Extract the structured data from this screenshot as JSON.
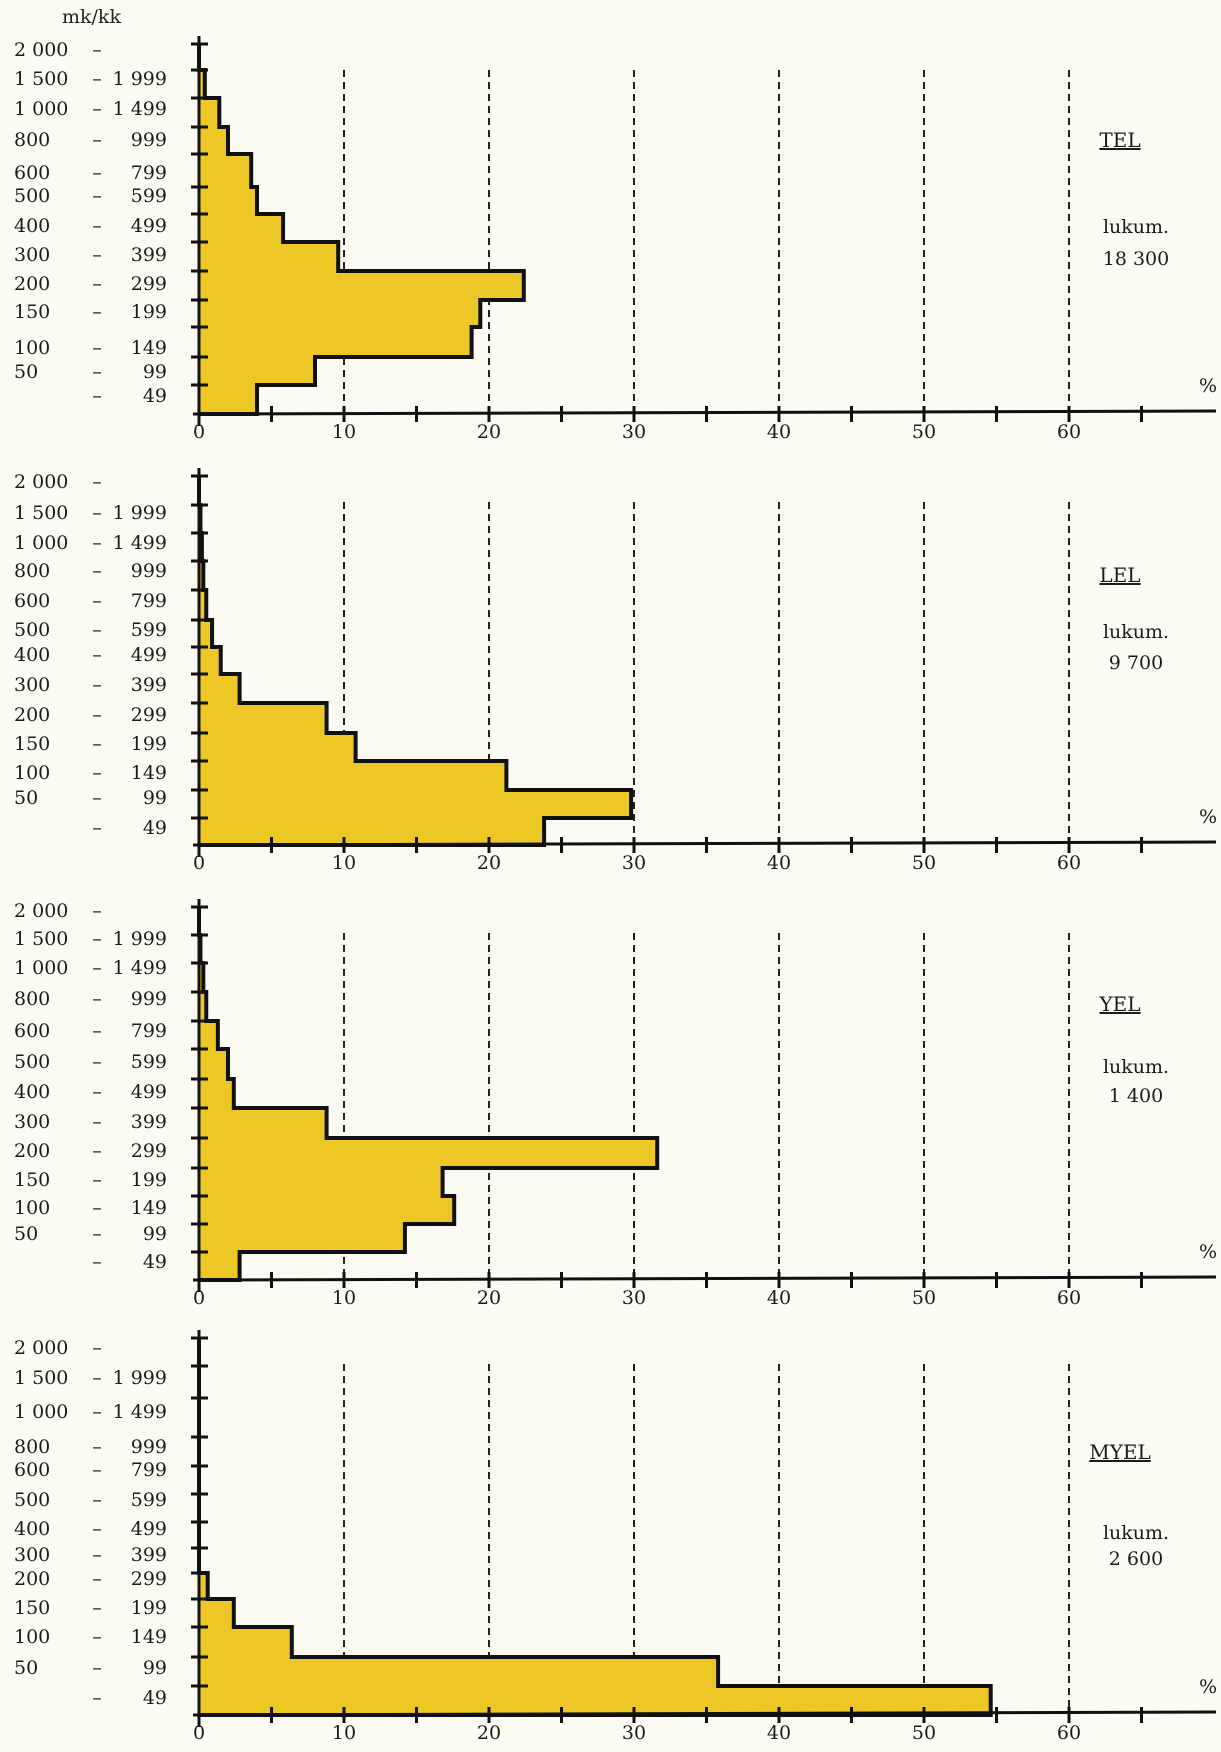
{
  "y_unit": "mk/kk",
  "colors": {
    "fill": "#ecc725",
    "outline": "#111111",
    "grid": "#222222",
    "paper": "#fbfaf3"
  },
  "chart_data": [
    {
      "type": "bar",
      "orientation": "horizontal",
      "style": "step-histogram",
      "title": "TEL",
      "count_label": "lukum.",
      "count_value": "18  300",
      "x_unit": "%",
      "xlim": [
        0,
        70
      ],
      "x_ticks": [
        "0",
        "10",
        "20",
        "30",
        "40",
        "50",
        "60"
      ],
      "grid": "dashed vertical lines at 10, 20, 30, 40, 50, 60",
      "categories": [
        {
          "lo": "",
          "hi": "49"
        },
        {
          "lo": "50",
          "hi": "99"
        },
        {
          "lo": "100",
          "hi": "149"
        },
        {
          "lo": "150",
          "hi": "199"
        },
        {
          "lo": "200",
          "hi": "299"
        },
        {
          "lo": "300",
          "hi": "399"
        },
        {
          "lo": "400",
          "hi": "499"
        },
        {
          "lo": "500",
          "hi": "599"
        },
        {
          "lo": "600",
          "hi": "799"
        },
        {
          "lo": "800",
          "hi": "999"
        },
        {
          "lo": "1  000",
          "hi": "1  499"
        },
        {
          "lo": "1  500",
          "hi": "1  999"
        },
        {
          "lo": "2  000",
          "hi": ""
        }
      ],
      "values": [
        4.0,
        8.0,
        18.8,
        19.4,
        22.4,
        9.6,
        5.8,
        4.0,
        3.6,
        2.0,
        1.4,
        0.4,
        0.0
      ]
    },
    {
      "type": "bar",
      "orientation": "horizontal",
      "style": "step-histogram",
      "title": "LEL",
      "count_label": "lukum.",
      "count_value": "9  700",
      "x_unit": "%",
      "xlim": [
        0,
        70
      ],
      "x_ticks": [
        "0",
        "10",
        "20",
        "30",
        "40",
        "50",
        "60"
      ],
      "grid": "dashed vertical lines at 10, 20, 30, 40, 50, 60",
      "categories": [
        {
          "lo": "",
          "hi": "49"
        },
        {
          "lo": "50",
          "hi": "99"
        },
        {
          "lo": "100",
          "hi": "149"
        },
        {
          "lo": "150",
          "hi": "199"
        },
        {
          "lo": "200",
          "hi": "299"
        },
        {
          "lo": "300",
          "hi": "399"
        },
        {
          "lo": "400",
          "hi": "499"
        },
        {
          "lo": "500",
          "hi": "599"
        },
        {
          "lo": "600",
          "hi": "799"
        },
        {
          "lo": "800",
          "hi": "999"
        },
        {
          "lo": "1  000",
          "hi": "1  499"
        },
        {
          "lo": "1  500",
          "hi": "1  999"
        },
        {
          "lo": "2  000",
          "hi": ""
        }
      ],
      "values": [
        23.8,
        29.8,
        21.2,
        10.8,
        8.8,
        2.8,
        1.5,
        0.9,
        0.5,
        0.3,
        0.2,
        0.1,
        0.0
      ]
    },
    {
      "type": "bar",
      "orientation": "horizontal",
      "style": "step-histogram",
      "title": "YEL",
      "count_label": "lukum.",
      "count_value": "1  400",
      "x_unit": "%",
      "xlim": [
        0,
        70
      ],
      "x_ticks": [
        "0",
        "10",
        "20",
        "30",
        "40",
        "50",
        "60"
      ],
      "grid": "dashed vertical lines at 10, 20, 30, 40, 50, 60",
      "categories": [
        {
          "lo": "",
          "hi": "49"
        },
        {
          "lo": "50",
          "hi": "99"
        },
        {
          "lo": "100",
          "hi": "149"
        },
        {
          "lo": "150",
          "hi": "199"
        },
        {
          "lo": "200",
          "hi": "299"
        },
        {
          "lo": "300",
          "hi": "399"
        },
        {
          "lo": "400",
          "hi": "499"
        },
        {
          "lo": "500",
          "hi": "599"
        },
        {
          "lo": "600",
          "hi": "799"
        },
        {
          "lo": "800",
          "hi": "999"
        },
        {
          "lo": "1  000",
          "hi": "1  499"
        },
        {
          "lo": "1  500",
          "hi": "1  999"
        },
        {
          "lo": "2  000",
          "hi": ""
        }
      ],
      "values": [
        2.8,
        14.2,
        17.6,
        16.8,
        31.6,
        8.8,
        2.4,
        2.0,
        1.3,
        0.5,
        0.3,
        0.1,
        0.0
      ]
    },
    {
      "type": "bar",
      "orientation": "horizontal",
      "style": "step-histogram",
      "title": "MYEL",
      "count_label": "lukum.",
      "count_value": "2  600",
      "x_unit": "%",
      "xlim": [
        0,
        70
      ],
      "x_ticks": [
        "0",
        "10",
        "20",
        "30",
        "40",
        "50",
        "60"
      ],
      "grid": "dashed vertical lines at 10, 20, 30, 40, 50, 60",
      "categories": [
        {
          "lo": "",
          "hi": "49"
        },
        {
          "lo": "50",
          "hi": "99"
        },
        {
          "lo": "100",
          "hi": "149"
        },
        {
          "lo": "150",
          "hi": "199"
        },
        {
          "lo": "200",
          "hi": "299"
        },
        {
          "lo": "300",
          "hi": "399"
        },
        {
          "lo": "400",
          "hi": "499"
        },
        {
          "lo": "500",
          "hi": "599"
        },
        {
          "lo": "600",
          "hi": "799"
        },
        {
          "lo": "800",
          "hi": "999"
        },
        {
          "lo": "1  000",
          "hi": "1  499"
        },
        {
          "lo": "1  500",
          "hi": "1  999"
        },
        {
          "lo": "2  000",
          "hi": ""
        }
      ],
      "values": [
        54.6,
        35.8,
        6.4,
        2.4,
        0.6,
        0,
        0,
        0,
        0,
        0,
        0,
        0,
        0
      ]
    }
  ]
}
